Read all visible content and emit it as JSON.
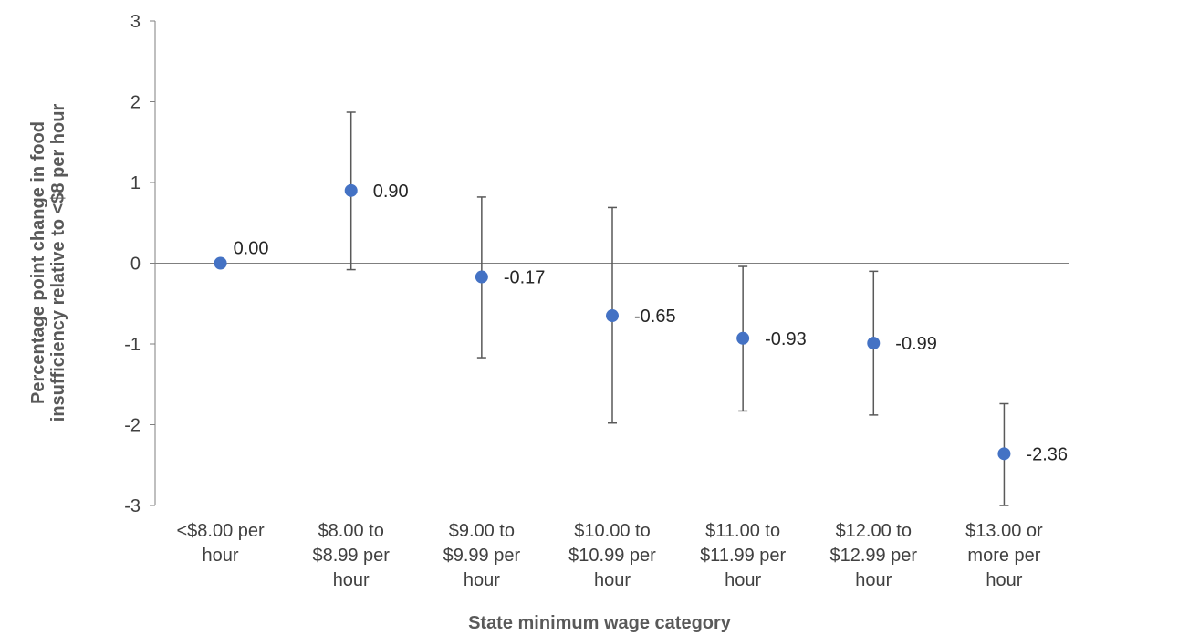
{
  "chart_data": {
    "type": "scatter",
    "title": "",
    "xlabel": "State minimum wage category",
    "ylabel_lines": [
      "Percentage point change in food",
      "insufficiency relative to <$8 per hour"
    ],
    "categories": [
      [
        "<$8.00 per",
        "hour"
      ],
      [
        "$8.00 to",
        "$8.99 per",
        "hour"
      ],
      [
        "$9.00 to",
        "$9.99 per",
        "hour"
      ],
      [
        "$10.00 to",
        "$10.99 per",
        "hour"
      ],
      [
        "$11.00 to",
        "$11.99 per",
        "hour"
      ],
      [
        "$12.00 to",
        "$12.99 per",
        "hour"
      ],
      [
        "$13.00 or",
        "more per",
        "hour"
      ]
    ],
    "values": [
      0.0,
      0.9,
      -0.17,
      -0.65,
      -0.93,
      -0.99,
      -2.36
    ],
    "labels": [
      "0.00",
      "0.90",
      "-0.17",
      "-0.65",
      "-0.93",
      "-0.99",
      "-2.36"
    ],
    "ci_low": [
      null,
      -0.08,
      -1.17,
      -1.98,
      -1.83,
      -1.88,
      -3.0
    ],
    "ci_high": [
      null,
      1.87,
      0.82,
      0.69,
      -0.04,
      -0.1,
      -1.74
    ],
    "ylim": [
      -3,
      3
    ],
    "yticks": [
      3,
      2,
      1,
      0,
      -1,
      -2,
      -3
    ],
    "ytick_labels": [
      "3",
      "2",
      "1",
      "0",
      "-1",
      "-2",
      "-3"
    ],
    "grid": false,
    "legend": "none",
    "colors": {
      "marker": "#4472C4",
      "error_bar": "#595959",
      "axis": "#7f7f7f"
    }
  }
}
